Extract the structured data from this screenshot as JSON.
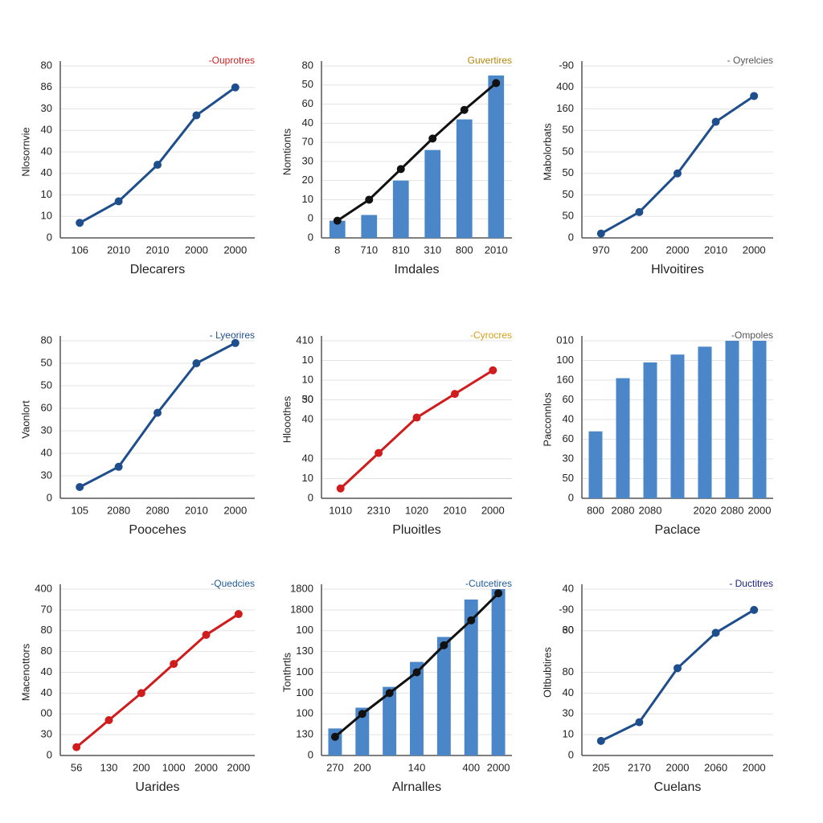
{
  "chart_data": [
    {
      "type": "line",
      "y_label": "Nlosornvie",
      "x_label": "Dlecarers",
      "legend_color": "#cc2222",
      "categories": [
        "106",
        "2010",
        "2010",
        "2000",
        "2000"
      ],
      "series": [
        {
          "name": "-Ouprotres",
          "color": "#1f4e8c",
          "values": [
            7,
            17,
            34,
            57,
            70
          ]
        }
      ],
      "ylim": [
        0,
        80
      ],
      "yticks": [
        0,
        10,
        {
          "value": 20,
          "label": "10"
        },
        {
          "value": 30,
          "label": "40"
        },
        40,
        {
          "value": 50,
          "label": "40"
        },
        {
          "value": 60,
          "label": "30"
        },
        {
          "value": 70,
          "label": "86"
        },
        80
      ],
      "grid": true
    },
    {
      "type": "combo",
      "y_label": "Nomtionts",
      "x_label": "Imdales",
      "legend_color": "#b8860b",
      "categories": [
        "8",
        "710",
        "810",
        "310",
        "800",
        "2010"
      ],
      "series": [
        {
          "name": "Guvertires",
          "type": "bar",
          "color": "#4a86c8",
          "values": [
            9,
            12,
            30,
            46,
            62,
            85
          ]
        },
        {
          "type": "line",
          "color": "#111111",
          "values": [
            9,
            20,
            36,
            52,
            67,
            81
          ]
        }
      ],
      "ylim": [
        0,
        90
      ],
      "yticks": [
        0,
        {
          "value": 10,
          "label": "0"
        },
        {
          "value": 20,
          "label": "10"
        },
        {
          "value": 30,
          "label": "20"
        },
        {
          "value": 40,
          "label": "30"
        },
        {
          "value": 50,
          "label": "70"
        },
        {
          "value": 60,
          "label": "40"
        },
        {
          "value": 70,
          "label": "60"
        },
        {
          "value": 80,
          "label": "50"
        },
        {
          "value": 90,
          "label": "80"
        }
      ],
      "grid": true
    },
    {
      "type": "line",
      "y_label": "Mabolorbats",
      "x_label": "Hlvoitires",
      "legend_color": "#555555",
      "categories": [
        "970",
        "200",
        "2000",
        "2010",
        "2000"
      ],
      "series": [
        {
          "name": "- Oyrelcies",
          "color": "#1f4e8c",
          "values": [
            2,
            12,
            30,
            54,
            66
          ]
        }
      ],
      "ylim": [
        0,
        80
      ],
      "yticks": [
        0,
        {
          "value": 10,
          "label": "50"
        },
        {
          "value": 20,
          "label": "50"
        },
        {
          "value": 30,
          "label": "50"
        },
        {
          "value": 40,
          "label": "50"
        },
        50,
        {
          "value": 60,
          "label": "160"
        },
        {
          "value": 70,
          "label": "400"
        },
        {
          "value": 80,
          "label": "-90"
        }
      ],
      "grid": true
    },
    {
      "type": "line",
      "y_label": "Vaonlort",
      "x_label": "Poocehes",
      "legend_color": "#1f4e8c",
      "categories": [
        "105",
        "2080",
        "2080",
        "2010",
        "2000"
      ],
      "series": [
        {
          "name": "- Lyeorires",
          "color": "#1f4e8c",
          "values": [
            5,
            14,
            38,
            60,
            69
          ]
        }
      ],
      "ylim": [
        0,
        70
      ],
      "yticks": [
        0,
        {
          "value": 10,
          "label": "30"
        },
        {
          "value": 20,
          "label": "40"
        },
        30,
        {
          "value": 40,
          "label": "60"
        },
        50,
        {
          "value": 60,
          "label": "50"
        },
        {
          "value": 70,
          "label": "80"
        }
      ],
      "grid": true
    },
    {
      "type": "line",
      "y_label": "Hlooothes",
      "x_label": "Pluoitles",
      "legend_color": "#d4a017",
      "categories": [
        "1010",
        "2310",
        "1020",
        "2010",
        "2000"
      ],
      "series": [
        {
          "name": "-Cyrocres",
          "color": "#d01c1c",
          "values": [
            5,
            23,
            41,
            53,
            65
          ]
        }
      ],
      "ylim": [
        0,
        80
      ],
      "yticks": [
        0,
        10,
        {
          "value": 20,
          "label": "40"
        },
        40,
        50,
        {
          "value": 50,
          "label": "30"
        },
        {
          "value": 60,
          "label": "10"
        },
        {
          "value": 70,
          "label": "10"
        },
        {
          "value": 80,
          "label": "410"
        }
      ],
      "grid": true
    },
    {
      "type": "bar",
      "y_label": "Pacconnlos",
      "x_label": "Paclace",
      "legend_color": "#555555",
      "categories": [
        "800",
        "2080",
        "2080",
        null,
        "2020",
        "2080",
        "2000"
      ],
      "series": [
        {
          "name": "-Ompoles",
          "color": "#4a86c8",
          "values": [
            34,
            61,
            69,
            73,
            77,
            80,
            80
          ]
        }
      ],
      "ylim": [
        0,
        80
      ],
      "yticks": [
        0,
        {
          "value": 10,
          "label": "50"
        },
        {
          "value": 20,
          "label": "30"
        },
        {
          "value": 30,
          "label": "60"
        },
        40,
        {
          "value": 50,
          "label": "60"
        },
        {
          "value": 60,
          "label": "160"
        },
        {
          "value": 70,
          "label": "100"
        },
        {
          "value": 80,
          "label": "010"
        }
      ],
      "grid": true
    },
    {
      "type": "line",
      "y_label": "Macenottors",
      "x_label": "Uarides",
      "legend_color": "#1f5a99",
      "categories": [
        "56",
        "130",
        "200",
        "1000",
        "2000",
        "2000"
      ],
      "series": [
        {
          "name": "-Quedcies",
          "color": "#d01c1c",
          "values": [
            4,
            17,
            30,
            44,
            58,
            68
          ]
        }
      ],
      "ylim": [
        0,
        80
      ],
      "yticks": [
        0,
        {
          "value": 10,
          "label": "30"
        },
        {
          "value": 20,
          "label": "00"
        },
        {
          "value": 30,
          "label": "40"
        },
        40,
        {
          "value": 50,
          "label": "80"
        },
        {
          "value": 60,
          "label": "80"
        },
        {
          "value": 70,
          "label": "70"
        },
        {
          "value": 80,
          "label": "400"
        }
      ],
      "grid": true
    },
    {
      "type": "combo",
      "y_label": "Tonthrtls",
      "x_label": "Alrnalles",
      "legend_color": "#1f5a99",
      "categories": [
        "270",
        "200",
        null,
        "140",
        null,
        "400",
        "2000"
      ],
      "series": [
        {
          "name": "-Cutcetires",
          "type": "bar",
          "color": "#4a86c8",
          "values": [
            13,
            23,
            33,
            45,
            57,
            75,
            80
          ]
        },
        {
          "type": "line",
          "color": "#111111",
          "values": [
            9,
            20,
            30,
            40,
            53,
            65,
            78
          ]
        }
      ],
      "ylim": [
        0,
        80
      ],
      "yticks": [
        0,
        {
          "value": 10,
          "label": "130"
        },
        {
          "value": 20,
          "label": "100"
        },
        {
          "value": 30,
          "label": "100"
        },
        {
          "value": 40,
          "label": "100"
        },
        {
          "value": 50,
          "label": "130"
        },
        {
          "value": 60,
          "label": "100"
        },
        {
          "value": 70,
          "label": "1800"
        },
        {
          "value": 80,
          "label": "1800"
        }
      ],
      "grid": true
    },
    {
      "type": "line",
      "y_label": "Oltbubtires",
      "x_label": "Cuelans",
      "legend_color": "#1a237e",
      "categories": [
        "205",
        "2170",
        "2000",
        "2060",
        "2000"
      ],
      "series": [
        {
          "name": "- Ductitres",
          "color": "#1f4e8c",
          "values": [
            7,
            16,
            42,
            59,
            70
          ]
        }
      ],
      "ylim": [
        0,
        80
      ],
      "yticks": [
        0,
        10,
        {
          "value": 20,
          "label": "30"
        },
        {
          "value": 30,
          "label": "40"
        },
        {
          "value": 40,
          "label": "80"
        },
        60,
        {
          "value": 60,
          "label": "30"
        },
        {
          "value": 70,
          "label": "-90"
        },
        {
          "value": 80,
          "label": "40"
        }
      ],
      "grid": true
    }
  ]
}
